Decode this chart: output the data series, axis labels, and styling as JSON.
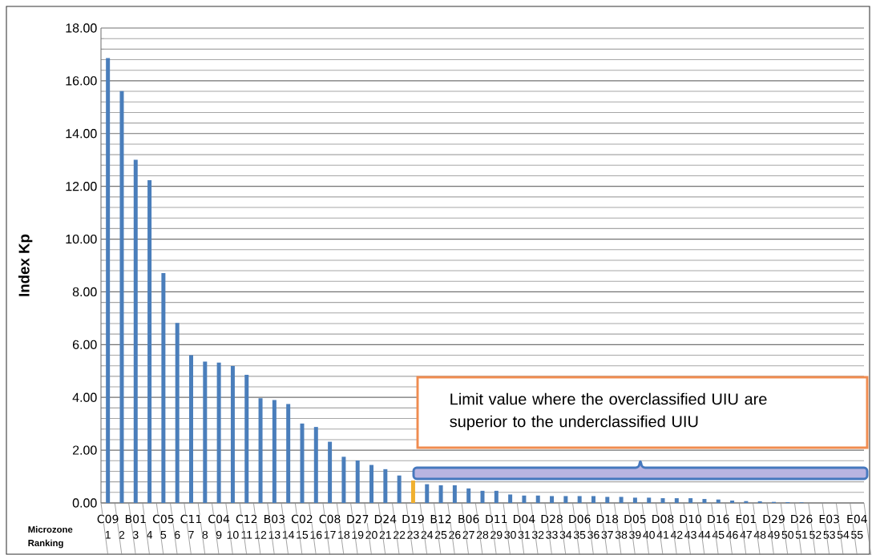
{
  "chart_data": {
    "type": "bar",
    "ylabel": "Index Kp",
    "categories": [
      "1",
      "2",
      "3",
      "4",
      "5",
      "6",
      "7",
      "8",
      "9",
      "10",
      "11",
      "12",
      "13",
      "14",
      "15",
      "16",
      "17",
      "18",
      "19",
      "20",
      "21",
      "22",
      "23",
      "24",
      "25",
      "26",
      "27",
      "28",
      "29",
      "30",
      "31",
      "32",
      "33",
      "34",
      "35",
      "36",
      "37",
      "38",
      "39",
      "40",
      "41",
      "42",
      "43",
      "44",
      "45",
      "46",
      "47",
      "48",
      "49",
      "50",
      "51",
      "52",
      "53",
      "54",
      "55"
    ],
    "values": [
      16.86,
      15.61,
      13.01,
      12.23,
      8.71,
      6.82,
      5.6,
      5.36,
      5.32,
      5.19,
      4.86,
      3.97,
      3.9,
      3.75,
      3.01,
      2.88,
      2.32,
      1.75,
      1.61,
      1.44,
      1.28,
      1.04,
      0.85,
      0.71,
      0.67,
      0.67,
      0.55,
      0.46,
      0.46,
      0.32,
      0.28,
      0.28,
      0.26,
      0.26,
      0.26,
      0.26,
      0.23,
      0.23,
      0.2,
      0.2,
      0.18,
      0.18,
      0.18,
      0.15,
      0.13,
      0.09,
      0.07,
      0.06,
      0.04,
      0.03,
      0.02,
      0,
      0,
      0,
      0
    ],
    "colors": [
      "#4a7ebb",
      "#4a7ebb",
      "#4a7ebb",
      "#4a7ebb",
      "#4a7ebb",
      "#4a7ebb",
      "#4a7ebb",
      "#4a7ebb",
      "#4a7ebb",
      "#4a7ebb",
      "#4a7ebb",
      "#4a7ebb",
      "#4a7ebb",
      "#4a7ebb",
      "#4a7ebb",
      "#4a7ebb",
      "#4a7ebb",
      "#4a7ebb",
      "#4a7ebb",
      "#4a7ebb",
      "#4a7ebb",
      "#4a7ebb",
      "#f0b030",
      "#4a7ebb",
      "#4a7ebb",
      "#4a7ebb",
      "#4a7ebb",
      "#4a7ebb",
      "#4a7ebb",
      "#4a7ebb",
      "#4a7ebb",
      "#4a7ebb",
      "#4a7ebb",
      "#4a7ebb",
      "#4a7ebb",
      "#4a7ebb",
      "#4a7ebb",
      "#4a7ebb",
      "#4a7ebb",
      "#4a7ebb",
      "#4a7ebb",
      "#4a7ebb",
      "#4a7ebb",
      "#4a7ebb",
      "#4a7ebb",
      "#4a7ebb",
      "#4a7ebb",
      "#4a7ebb",
      "#4a7ebb",
      "#4a7ebb",
      "#4a7ebb",
      "#4a7ebb",
      "#4a7ebb",
      "#4a7ebb",
      "#4a7ebb"
    ],
    "ylim": [
      0,
      18
    ],
    "yticks": [
      {
        "value": 0,
        "label": "0.00"
      },
      {
        "value": 2,
        "label": "2.00"
      },
      {
        "value": 4,
        "label": "4.00"
      },
      {
        "value": 6,
        "label": "6.00"
      },
      {
        "value": 8,
        "label": "8.00"
      },
      {
        "value": 10,
        "label": "10.00"
      },
      {
        "value": 12,
        "label": "12.00"
      },
      {
        "value": 14,
        "label": "14.00"
      },
      {
        "value": 16,
        "label": "16.00"
      },
      {
        "value": 18,
        "label": "18.00"
      }
    ],
    "grid": true,
    "annotations": [
      "Limit value where the overclassified UIU are superior to the underclassified UIU",
      "Microzone",
      "Ranking",
      "C09",
      "B01",
      "C05",
      "C11",
      "C04",
      "C12",
      "B03",
      "C02",
      "C08",
      "D27",
      "D24",
      "D19",
      "B12",
      "B06",
      "D11",
      "D04",
      "D28",
      "D06",
      "D18",
      "D05",
      "D08",
      "D10",
      "D16",
      "E01",
      "D29",
      "D26",
      "E03",
      "E04"
    ]
  }
}
